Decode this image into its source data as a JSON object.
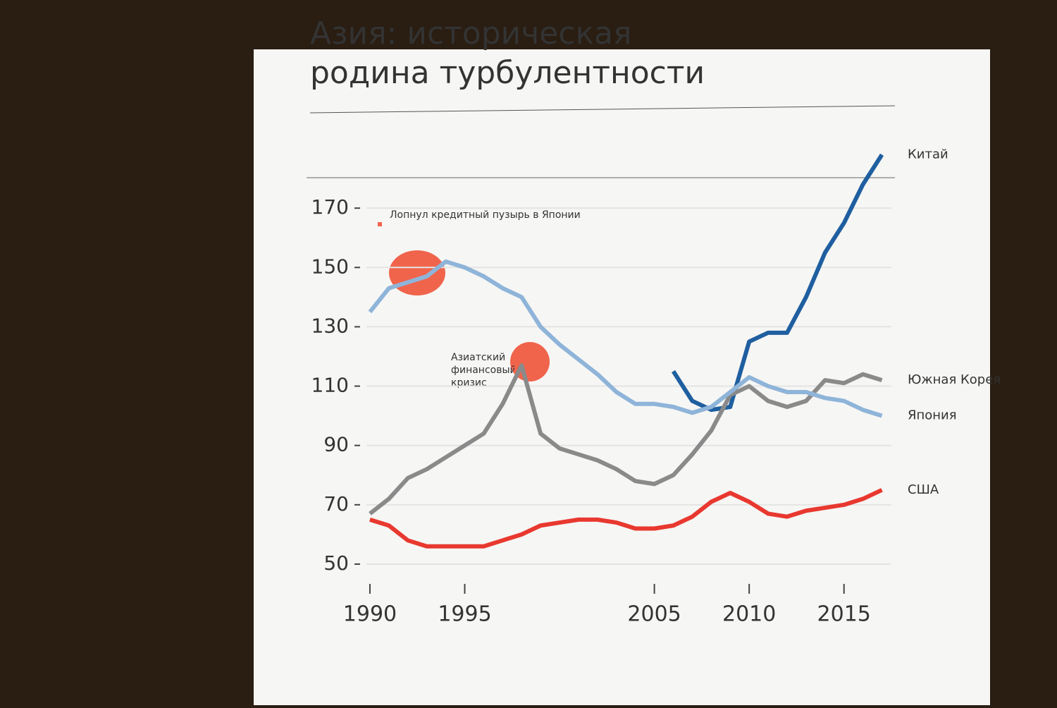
{
  "chart_data": {
    "type": "line",
    "title": "Азия: историческая родина турбулентности",
    "annotations": [
      "Лопнул кредитный пузырь в Японии",
      "Азиатский финансовый кризис"
    ],
    "x": [
      1990,
      1991,
      1992,
      1993,
      1994,
      1995,
      1996,
      1997,
      1998,
      1999,
      2000,
      2001,
      2002,
      2003,
      2004,
      2005,
      2006,
      2007,
      2008,
      2009,
      2010,
      2011,
      2012,
      2013,
      2014,
      2015,
      2016,
      2017
    ],
    "series": [
      {
        "name": "Китай",
        "color": "#1f5fa0",
        "values": [
          null,
          null,
          null,
          null,
          null,
          null,
          null,
          null,
          null,
          null,
          null,
          null,
          null,
          null,
          null,
          null,
          115,
          105,
          102,
          103,
          125,
          128,
          128,
          140,
          155,
          165,
          178,
          188
        ]
      },
      {
        "name": "Южная Корея",
        "color": "#8a8a8a",
        "values": [
          67,
          72,
          79,
          82,
          86,
          90,
          94,
          104,
          117,
          94,
          89,
          87,
          85,
          82,
          78,
          77,
          80,
          87,
          95,
          107,
          110,
          105,
          103,
          105,
          112,
          111,
          114,
          112
        ]
      },
      {
        "name": "Япония",
        "color": "#8fb4d9",
        "values": [
          135,
          143,
          145,
          147,
          152,
          150,
          147,
          143,
          140,
          130,
          124,
          119,
          114,
          108,
          104,
          104,
          103,
          101,
          103,
          108,
          113,
          110,
          108,
          108,
          106,
          105,
          102,
          100
        ]
      },
      {
        "name": "США",
        "color": "#e8382f",
        "values": [
          65,
          63,
          58,
          56,
          56,
          56,
          56,
          58,
          60,
          63,
          64,
          65,
          65,
          64,
          62,
          62,
          63,
          66,
          71,
          74,
          71,
          67,
          66,
          68,
          69,
          70,
          72,
          75
        ]
      }
    ],
    "xlim": [
      1989.5,
      2017.5
    ],
    "xticks": [
      1990,
      1995,
      2005,
      2010,
      2015
    ],
    "ylim": [
      45,
      190
    ],
    "yticks": [
      50,
      70,
      90,
      110,
      130,
      150,
      170
    ],
    "grid": true
  }
}
